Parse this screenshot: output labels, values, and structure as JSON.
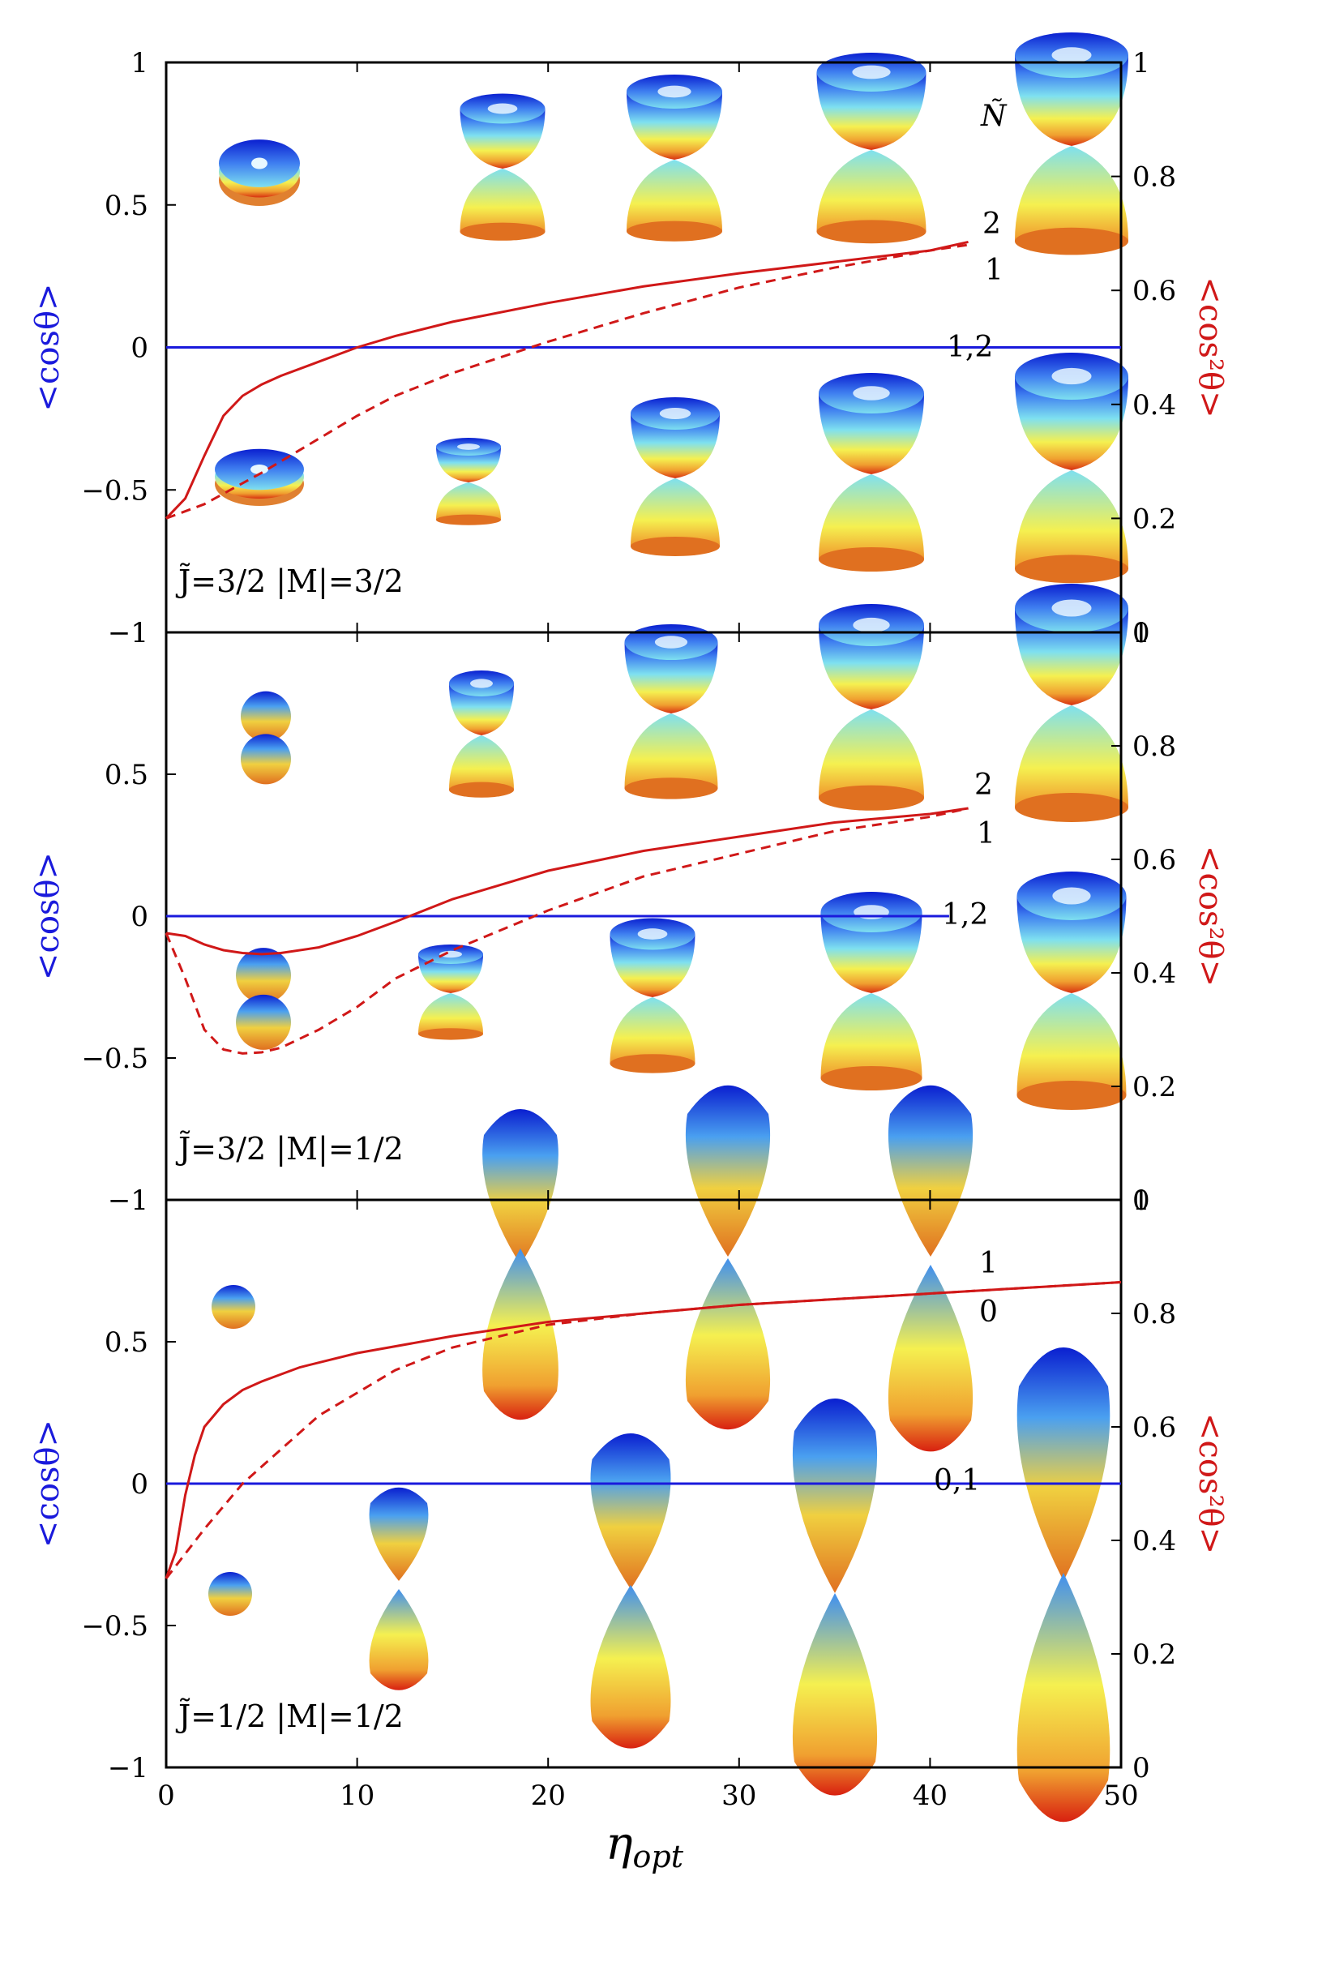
{
  "chart_data": {
    "type": "line",
    "xlabel": "ηopt",
    "xlim": [
      0,
      50
    ],
    "xticks": [
      "0",
      "10",
      "20",
      "30",
      "40",
      "50"
    ],
    "ylabel_left": "<cosθ>",
    "ylabel_right": "<cos²θ>",
    "ylim_left": [
      -1,
      1
    ],
    "ylim_right": [
      0,
      1
    ],
    "yticks_left": [
      "1",
      "0.5",
      "0",
      "−0.5",
      "−1"
    ],
    "yticks_right": [
      "1",
      "0.8",
      "0.6",
      "0.4",
      "0.2",
      "0"
    ],
    "n_tilde_label": "Ñ",
    "panels": [
      {
        "id": "top",
        "label": "J̃=3/2 |M|=3/2",
        "cos_series": [
          {
            "name": "1,2",
            "label": "1,2",
            "x": [
              0,
              50
            ],
            "y": [
              0,
              0
            ]
          }
        ],
        "cos2_series": [
          {
            "name": "2",
            "label": "2",
            "style": "solid",
            "x": [
              0,
              1,
              2,
              3,
              4,
              5,
              6,
              8,
              10,
              12,
              15,
              20,
              25,
              30,
              35,
              40,
              42
            ],
            "y": [
              0.2,
              0.235,
              0.31,
              0.38,
              0.415,
              0.435,
              0.45,
              0.475,
              0.5,
              0.52,
              0.545,
              0.578,
              0.607,
              0.63,
              0.65,
              0.67,
              0.685
            ]
          },
          {
            "name": "1",
            "label": "1",
            "style": "dashed",
            "x": [
              0,
              2,
              5,
              8,
              10,
              12,
              15,
              20,
              25,
              30,
              35,
              40,
              42
            ],
            "y": [
              0.2,
              0.225,
              0.28,
              0.34,
              0.38,
              0.415,
              0.455,
              0.51,
              0.56,
              0.605,
              0.64,
              0.67,
              0.68
            ]
          }
        ]
      },
      {
        "id": "middle",
        "label": "J̃=3/2 |M|=1/2",
        "cos_series": [
          {
            "name": "1,2",
            "label": "1,2",
            "x": [
              0,
              41
            ],
            "y": [
              0,
              0
            ]
          }
        ],
        "cos2_series": [
          {
            "name": "2",
            "label": "2",
            "style": "solid",
            "x": [
              0,
              1,
              2,
              3,
              4,
              5,
              6,
              8,
              10,
              12,
              15,
              20,
              25,
              30,
              35,
              40,
              42
            ],
            "y": [
              0.47,
              0.465,
              0.45,
              0.44,
              0.435,
              0.433,
              0.435,
              0.445,
              0.465,
              0.49,
              0.53,
              0.58,
              0.615,
              0.64,
              0.665,
              0.68,
              0.69
            ]
          },
          {
            "name": "1",
            "label": "1",
            "style": "dashed",
            "x": [
              0,
              1,
              2,
              3,
              4,
              5,
              6,
              8,
              10,
              12,
              15,
              20,
              25,
              30,
              35,
              40,
              42
            ],
            "y": [
              0.47,
              0.39,
              0.3,
              0.265,
              0.258,
              0.26,
              0.268,
              0.3,
              0.34,
              0.39,
              0.44,
              0.51,
              0.57,
              0.61,
              0.65,
              0.675,
              0.69
            ]
          }
        ]
      },
      {
        "id": "bottom",
        "label": "J̃=1/2 |M|=1/2",
        "cos_series": [
          {
            "name": "0,1",
            "label": "0,1",
            "x": [
              0,
              50
            ],
            "y": [
              0,
              0
            ]
          }
        ],
        "cos2_series": [
          {
            "name": "1",
            "label": "1",
            "style": "solid",
            "x": [
              0,
              0.5,
              1,
              1.5,
              2,
              3,
              4,
              5,
              7,
              10,
              15,
              20,
              25,
              30,
              35,
              40,
              45,
              50
            ],
            "y": [
              0.333,
              0.38,
              0.48,
              0.55,
              0.6,
              0.64,
              0.665,
              0.68,
              0.705,
              0.73,
              0.76,
              0.785,
              0.8,
              0.815,
              0.825,
              0.835,
              0.845,
              0.855
            ]
          },
          {
            "name": "0",
            "label": "0",
            "style": "dashed",
            "x": [
              0,
              2,
              4,
              6,
              8,
              10,
              12,
              15,
              20,
              25,
              30,
              35,
              40,
              45,
              50
            ],
            "y": [
              0.333,
              0.42,
              0.5,
              0.56,
              0.62,
              0.66,
              0.7,
              0.74,
              0.78,
              0.8,
              0.815,
              0.825,
              0.835,
              0.845,
              0.855
            ]
          }
        ]
      }
    ]
  },
  "colors": {
    "cos": "#1a1adc",
    "cos2": "#d01818",
    "axis": "#000000",
    "tick_text": "#000000"
  }
}
